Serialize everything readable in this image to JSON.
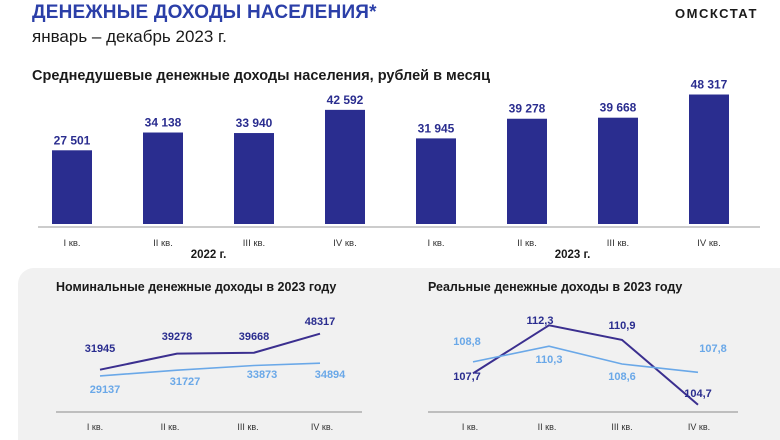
{
  "header": {
    "title": "ДЕНЕЖНЫЕ ДОХОДЫ НАСЕЛЕНИЯ*",
    "subtitle": "январь – декабрь 2023 г.",
    "brand": "ОМСКСТАТ"
  },
  "colors": {
    "title": "#2b3fa8",
    "bar": "#2a2d8f",
    "nominal_line": "#3b2f8f",
    "real_line_light": "#6aa8e8",
    "dark_label": "#2a2d8f",
    "light_label": "#6aa8e8",
    "panel_bg": "#f1f1f1"
  },
  "chart_data": [
    {
      "type": "bar",
      "title": "Среднедушевые денежные доходы населения, рублей в месяц",
      "categories": [
        "I кв.",
        "II кв.",
        "III кв.",
        "IV кв.",
        "I кв.",
        "II кв.",
        "III кв.",
        "IV кв."
      ],
      "groups": [
        {
          "label": "2022 г.",
          "from": 0,
          "to": 3
        },
        {
          "label": "2023 г.",
          "from": 4,
          "to": 7
        }
      ],
      "values": [
        27501,
        34138,
        33940,
        42592,
        31945,
        39278,
        39668,
        48317
      ],
      "value_labels": [
        "27 501",
        "34 138",
        "33 940",
        "42 592",
        "31 945",
        "39 278",
        "39 668",
        "48 317"
      ],
      "ylim": [
        0,
        50000
      ],
      "grid": false,
      "legend": "none"
    },
    {
      "type": "line",
      "title": "Номинальные денежные доходы в 2023 году",
      "categories": [
        "I кв.",
        "II кв.",
        "III кв.",
        "IV кв."
      ],
      "series": [
        {
          "values": [
            31945,
            39278,
            39668,
            48317
          ],
          "labels": [
            "31945",
            "39278",
            "39668",
            "48317"
          ],
          "color": "#3b2f8f"
        },
        {
          "values": [
            29137,
            31727,
            33873,
            34894
          ],
          "labels": [
            "29137",
            "31727",
            "33873",
            "34894"
          ],
          "color": "#6aa8e8"
        }
      ],
      "grid": false,
      "legend": "none"
    },
    {
      "type": "line",
      "title": "Реальные денежные доходы в 2023 году",
      "categories": [
        "I кв.",
        "II кв.",
        "III кв.",
        "IV кв."
      ],
      "series": [
        {
          "values": [
            107.7,
            112.3,
            110.9,
            104.7
          ],
          "labels": [
            "107,7",
            "112,3",
            "110,9",
            "104,7"
          ],
          "color": "#3b2f8f"
        },
        {
          "values": [
            108.8,
            110.3,
            108.6,
            107.8
          ],
          "labels": [
            "108,8",
            "110,3",
            "108,6",
            "107,8"
          ],
          "color": "#6aa8e8"
        }
      ],
      "grid": false,
      "legend": "none"
    }
  ]
}
